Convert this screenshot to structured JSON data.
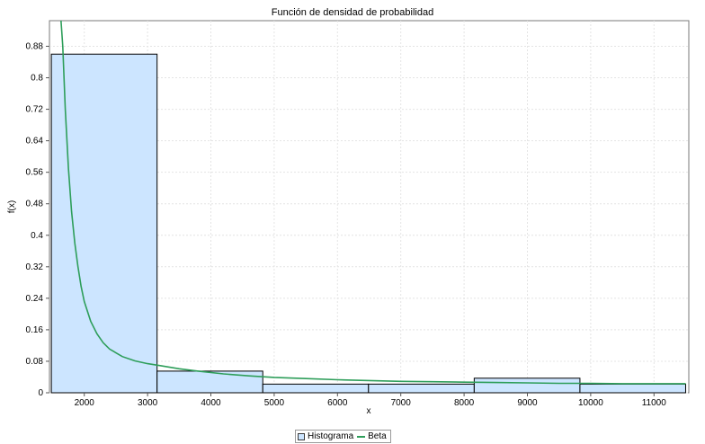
{
  "chart_data": {
    "type": "bar",
    "title": "Función de densidad de probabilidad",
    "xlabel": "x",
    "ylabel": "f(x)",
    "xlim": [
      1450,
      11550
    ],
    "ylim": [
      0,
      0.945
    ],
    "x_ticks": [
      2000,
      3000,
      4000,
      5000,
      6000,
      7000,
      8000,
      9000,
      10000,
      11000
    ],
    "y_ticks": [
      0,
      0.08,
      0.16,
      0.24,
      0.32,
      0.4,
      0.48,
      0.56,
      0.64,
      0.72,
      0.8,
      0.88
    ],
    "y_tick_labels": [
      "0",
      "0.08",
      "0.16",
      "0.24",
      "0.32",
      "0.4",
      "0.48",
      "0.56",
      "0.64",
      "0.72",
      "0.8",
      "0.88"
    ],
    "grid": true,
    "legend_position": "bottom-center",
    "series": [
      {
        "name": "Histograma",
        "type": "histogram",
        "color": "#cce5ff",
        "edge_color": "#000000",
        "bins": [
          {
            "x0": 1480,
            "x1": 3150,
            "value": 0.86
          },
          {
            "x0": 3150,
            "x1": 4820,
            "value": 0.055
          },
          {
            "x0": 4820,
            "x1": 6490,
            "value": 0.022
          },
          {
            "x0": 6490,
            "x1": 8160,
            "value": 0.022
          },
          {
            "x0": 8160,
            "x1": 9830,
            "value": 0.037
          },
          {
            "x0": 9830,
            "x1": 11500,
            "value": 0.022
          }
        ]
      },
      {
        "name": "Beta",
        "type": "line",
        "color": "#2e9e5a",
        "x": [
          1630,
          1660,
          1700,
          1750,
          1800,
          1850,
          1900,
          1950,
          2000,
          2100,
          2200,
          2300,
          2400,
          2600,
          2800,
          3000,
          3200,
          3500,
          3800,
          4200,
          4600,
          5000,
          5500,
          6000,
          6500,
          7000,
          7500,
          8000,
          8500,
          9000,
          9500,
          10000,
          10500,
          11000,
          11500
        ],
        "y": [
          0.95,
          0.88,
          0.72,
          0.57,
          0.46,
          0.38,
          0.32,
          0.27,
          0.232,
          0.182,
          0.15,
          0.127,
          0.111,
          0.092,
          0.081,
          0.074,
          0.069,
          0.061,
          0.055,
          0.048,
          0.043,
          0.039,
          0.036,
          0.033,
          0.031,
          0.029,
          0.028,
          0.027,
          0.026,
          0.025,
          0.024,
          0.024,
          0.023,
          0.023,
          0.023
        ]
      }
    ]
  },
  "legend": {
    "items": [
      {
        "label": "Histograma"
      },
      {
        "label": "Beta"
      }
    ]
  }
}
